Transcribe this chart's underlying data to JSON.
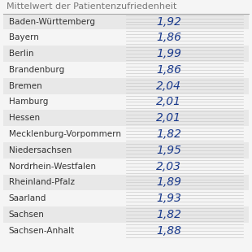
{
  "title": "Mittelwert der Patientenzufriedenheit",
  "states": [
    "Baden-Württemberg",
    "Bayern",
    "Berlin",
    "Brandenburg",
    "Bremen",
    "Hamburg",
    "Hessen",
    "Mecklenburg-Vorpommern",
    "Niedersachsen",
    "Nordrhein-Westfalen",
    "Rheinland-Pfalz",
    "Saarland",
    "Sachsen",
    "Sachsen-Anhalt"
  ],
  "values_str": [
    "1,92",
    "1,86",
    "1,99",
    "1,86",
    "2,04",
    "2,01",
    "2,01",
    "1,82",
    "1,95",
    "2,03",
    "1,89",
    "1,93",
    "1,82",
    "1,88"
  ],
  "values": [
    1.92,
    1.86,
    1.99,
    1.86,
    2.04,
    2.01,
    2.01,
    1.82,
    1.95,
    2.03,
    1.89,
    1.93,
    1.82,
    1.88
  ],
  "bg_color": "#f5f5f5",
  "row_colors": [
    "#e8e8e8",
    "#f5f5f5"
  ],
  "value_color": "#1a3a8c",
  "label_color": "#333333",
  "title_color": "#777777",
  "title_fontsize": 8.0,
  "label_fontsize": 7.5,
  "value_fontsize": 10.0,
  "bar_max": 2.2,
  "stripe_color": "#cccccc",
  "divider_color": "#aaaaaa"
}
